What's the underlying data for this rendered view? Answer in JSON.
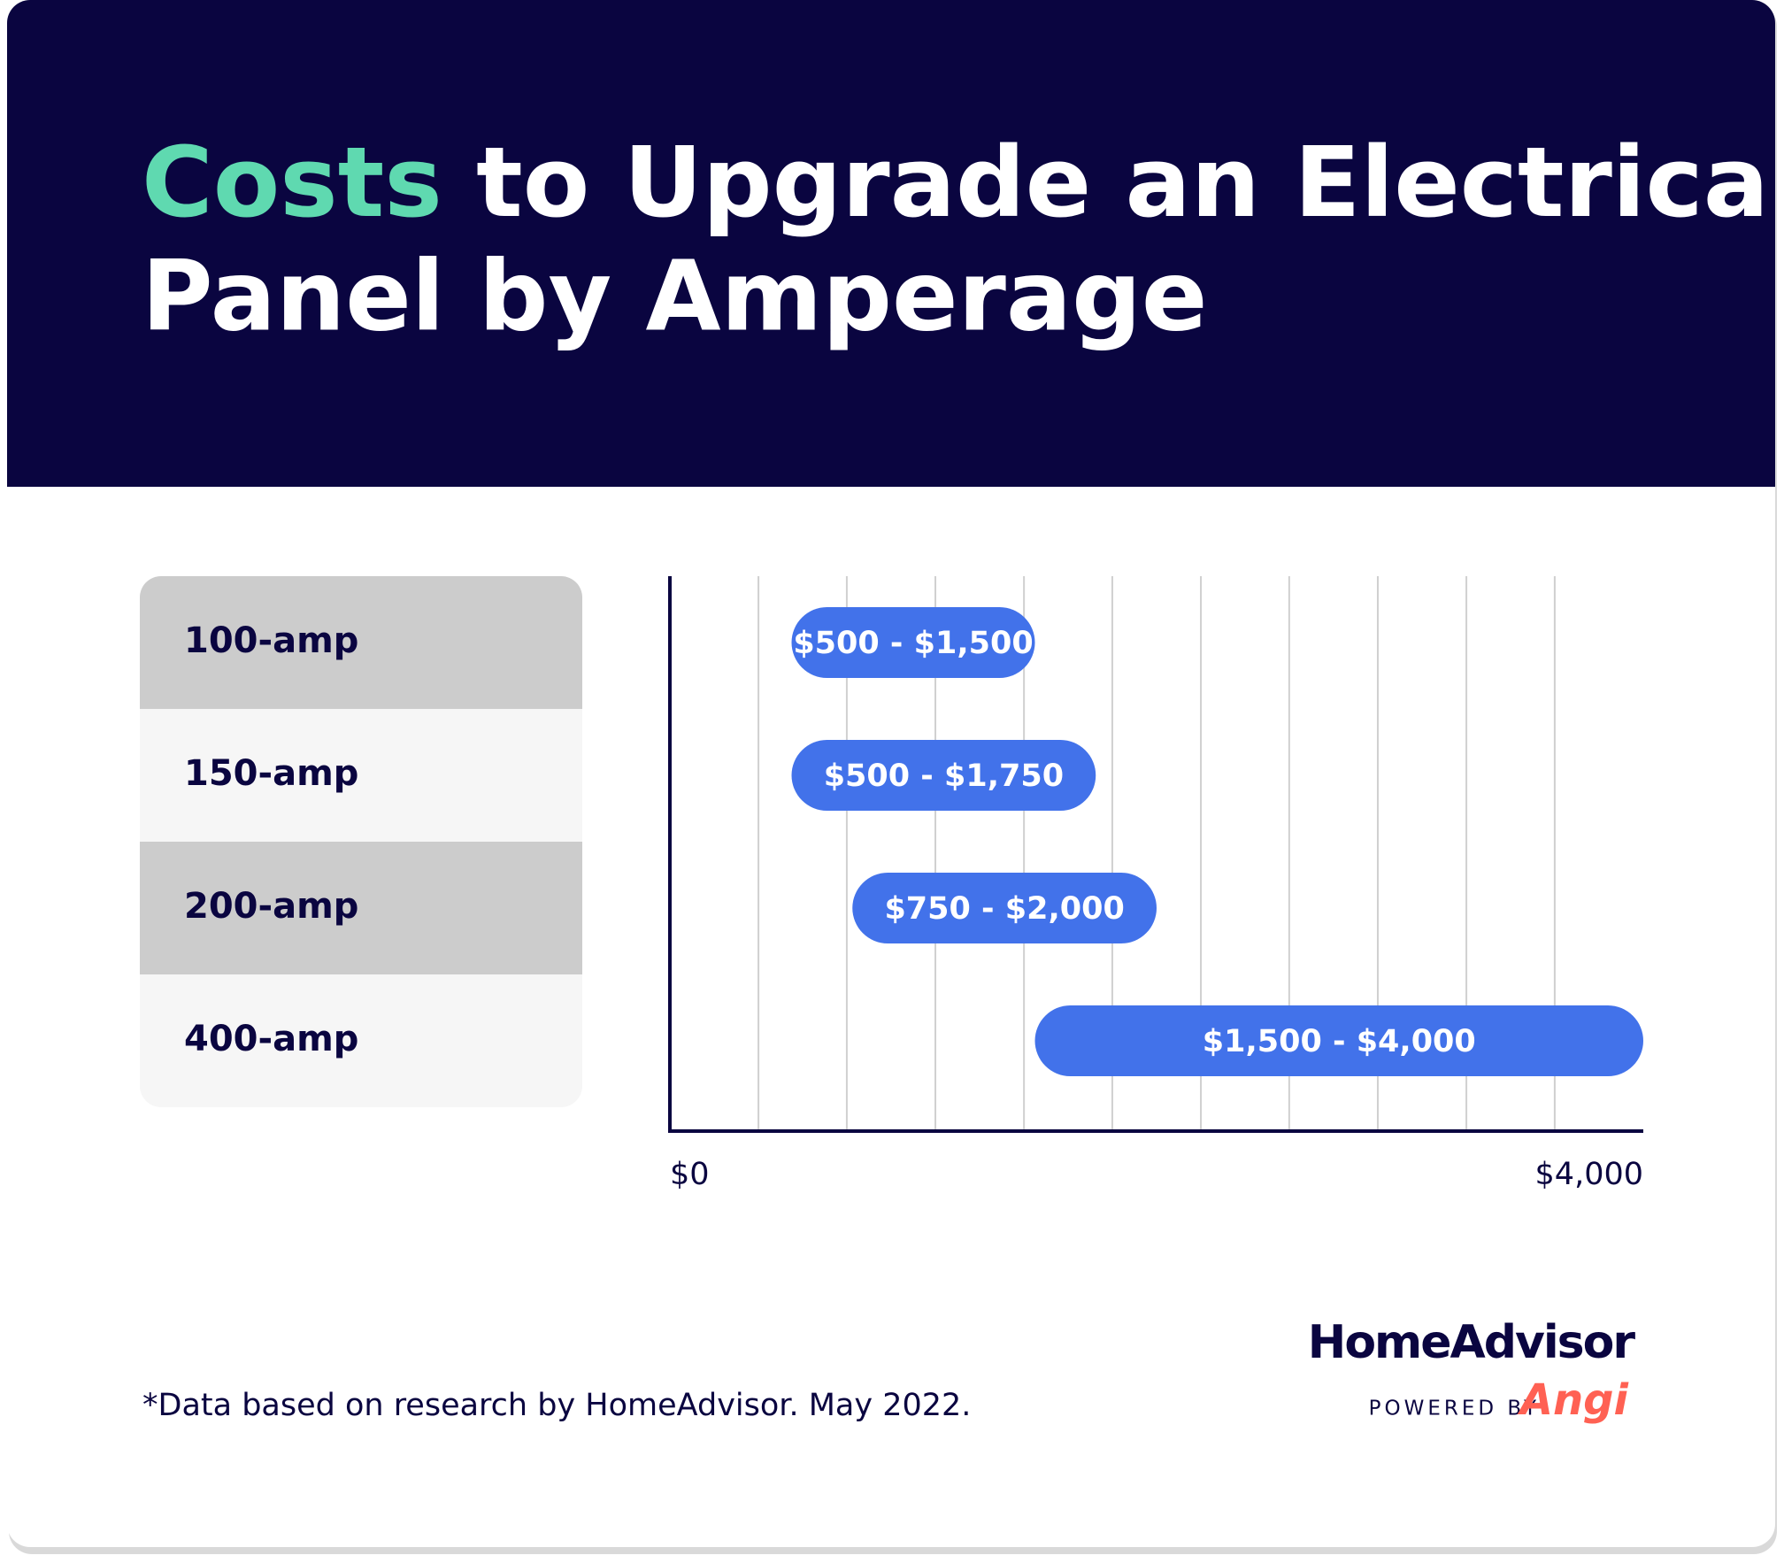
{
  "chart_data": {
    "type": "range-bar",
    "title_highlight": "Costs",
    "title_line1": "to Upgrade an Electrical",
    "title_line2": "Panel by Amperage",
    "categories": [
      "100-amp",
      "150-amp",
      "200-amp",
      "400-amp"
    ],
    "low": [
      500,
      500,
      750,
      1500
    ],
    "high": [
      1500,
      1750,
      2000,
      4000
    ],
    "value_labels": [
      "$500 - $1,500",
      "$500 - $1,750",
      "$750 - $2,000",
      "$1,500 - $4,000"
    ],
    "color": "#4272ea",
    "xlim": [
      0,
      4000
    ],
    "xticks": [
      {
        "value": 0,
        "label": "$0"
      },
      {
        "value": 4000,
        "label": "$4,000"
      }
    ],
    "minor_xticks": [
      364,
      727,
      1091,
      1455,
      1818,
      2182,
      2545,
      2909,
      3273,
      3636
    ],
    "grid": true,
    "footnote": "*Data based on research by HomeAdvisor. May 2022.",
    "brand": "HomeAdvisor",
    "powered_by": "POWERED BY",
    "brand_partner": "Angi"
  }
}
